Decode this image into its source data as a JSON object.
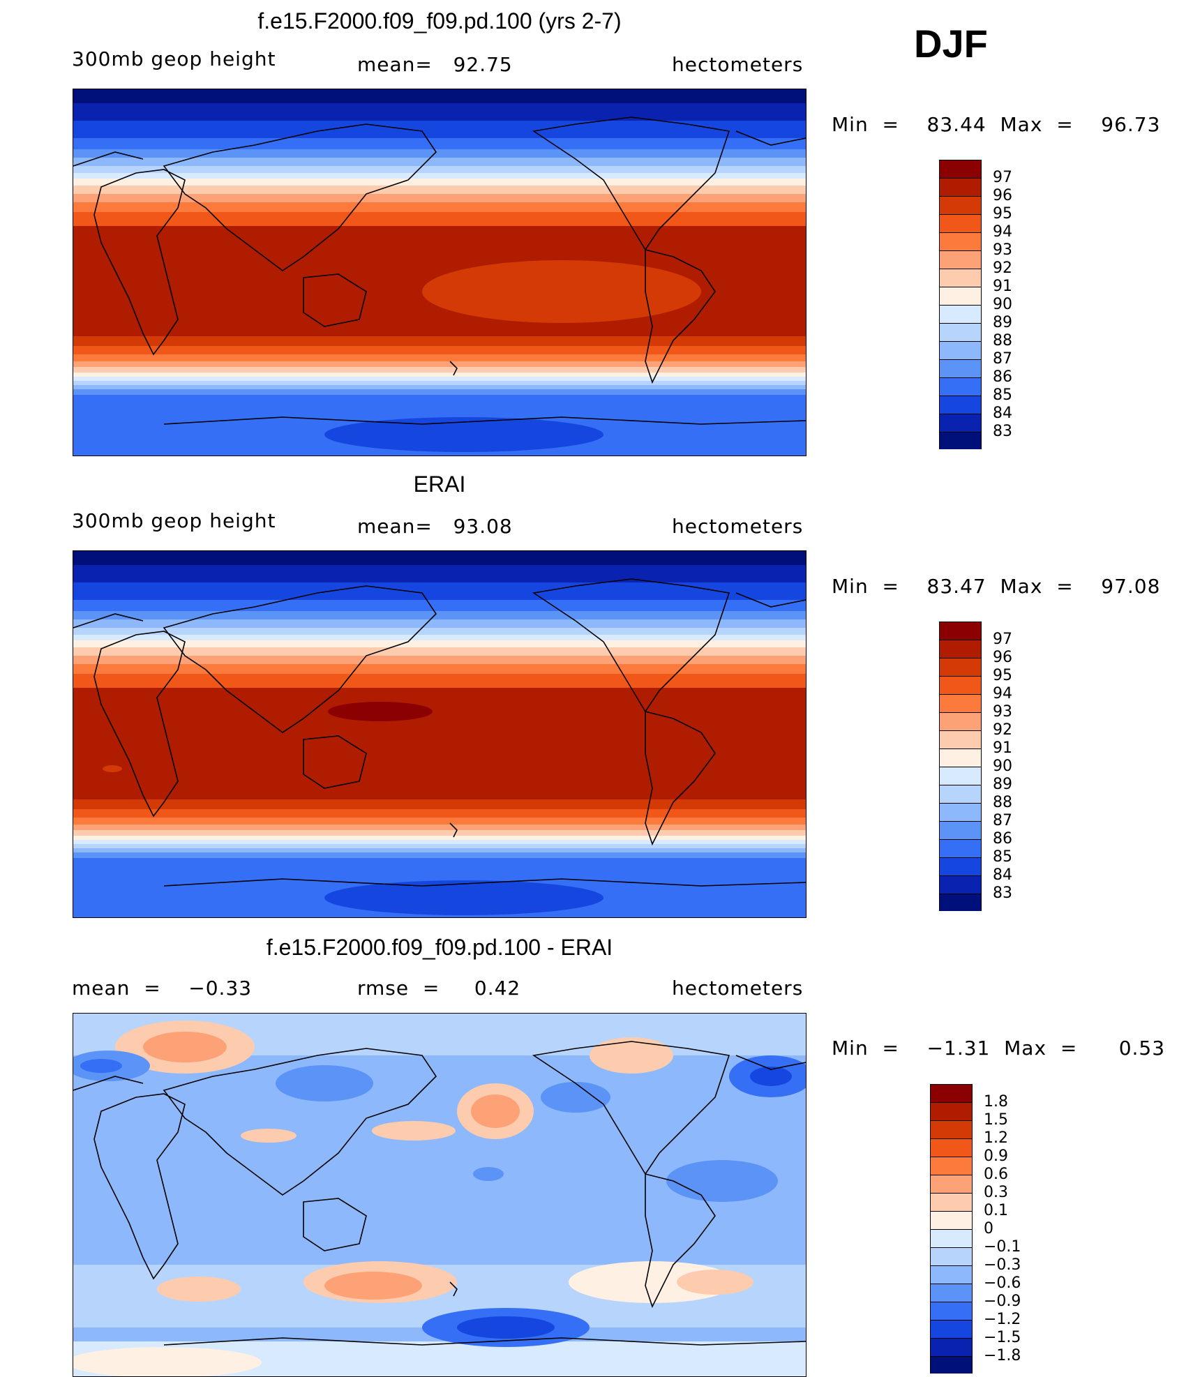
{
  "season": "DJF",
  "panels": [
    {
      "title": "f.e15.F2000.f09_f09.pd.100 (yrs 2-7)",
      "left_label": "300mb  geop  height",
      "center_label": "mean=   92.75",
      "right_label": "hectometers",
      "minmax": "Min  =    83.44  Max  =    96.73",
      "levels": [
        "97",
        "96",
        "95",
        "94",
        "93",
        "92",
        "91",
        "90",
        "89",
        "88",
        "87",
        "86",
        "85",
        "84",
        "83"
      ],
      "colors": [
        "#8b0000",
        "#b01c00",
        "#d43a05",
        "#f2571a",
        "#fb7a3c",
        "#fca276",
        "#fdccae",
        "#fff0e4",
        "#d8eafd",
        "#b7d4fc",
        "#8db8fb",
        "#5b93f7",
        "#356ff5",
        "#1646e0",
        "#0a22b0",
        "#00107a"
      ]
    },
    {
      "title": "ERAI",
      "left_label": "300mb  geop  height",
      "center_label": "mean=   93.08",
      "right_label": "hectometers",
      "minmax": "Min  =    83.47  Max  =    97.08",
      "levels": [
        "97",
        "96",
        "95",
        "94",
        "93",
        "92",
        "91",
        "90",
        "89",
        "88",
        "87",
        "86",
        "85",
        "84",
        "83"
      ],
      "colors": [
        "#8b0000",
        "#b01c00",
        "#d43a05",
        "#f2571a",
        "#fb7a3c",
        "#fca276",
        "#fdccae",
        "#fff0e4",
        "#d8eafd",
        "#b7d4fc",
        "#8db8fb",
        "#5b93f7",
        "#356ff5",
        "#1646e0",
        "#0a22b0",
        "#00107a"
      ]
    },
    {
      "title": "f.e15.F2000.f09_f09.pd.100 - ERAI",
      "left_label": "mean  =    −0.33",
      "center_label": "rmse  =     0.42",
      "right_label": "hectometers",
      "minmax": "Min  =    −1.31  Max  =      0.53",
      "levels": [
        "1.8",
        "1.5",
        "1.2",
        "0.9",
        "0.6",
        "0.3",
        "0.1",
        "0",
        "−0.1",
        "−0.3",
        "−0.6",
        "−0.9",
        "−1.2",
        "−1.5",
        "−1.8"
      ],
      "colors": [
        "#8b0000",
        "#b01c00",
        "#d43a05",
        "#f2571a",
        "#fb7a3c",
        "#fca276",
        "#fdccae",
        "#fff0e4",
        "#d8eafd",
        "#b7d4fc",
        "#8db8fb",
        "#5b93f7",
        "#356ff5",
        "#1646e0",
        "#0a22b0",
        "#00107a"
      ]
    }
  ]
}
